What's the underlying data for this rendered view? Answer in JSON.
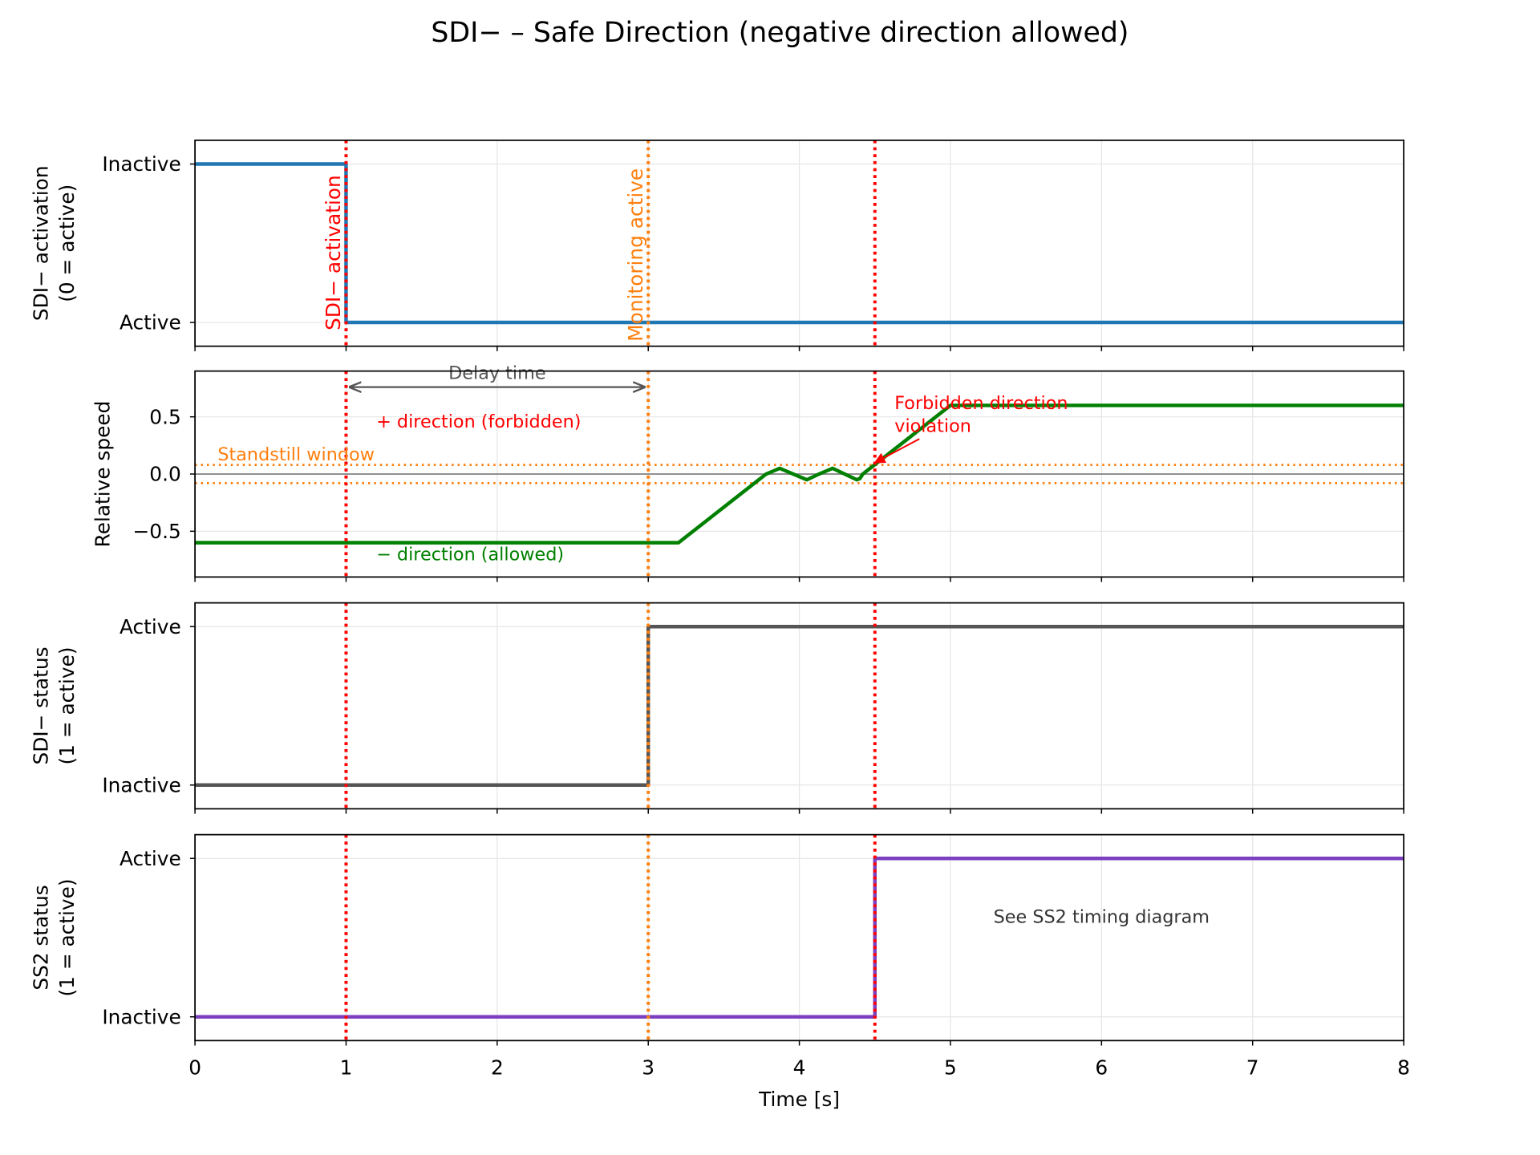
{
  "title": "SDI− – Safe Direction (negative direction allowed)",
  "chart_data": [
    {
      "type": "line",
      "ylabel": [
        "SDI− activation",
        "(0 = active)"
      ],
      "xlim": [
        0,
        8
      ],
      "xticks": [
        0,
        1,
        2,
        3,
        4,
        5,
        6,
        7,
        8
      ],
      "ylim": [
        -0.15,
        1.15
      ],
      "yticks": [
        {
          "value": 0,
          "label": "Active"
        },
        {
          "value": 1,
          "label": "Inactive"
        }
      ],
      "grid": true,
      "series": [
        {
          "color": "#1f77b4",
          "x": [
            0,
            1,
            1,
            8
          ],
          "values": [
            1,
            1,
            0,
            0
          ]
        }
      ],
      "vlines": [
        {
          "x": 1,
          "color": "#ff0000"
        },
        {
          "x": 3,
          "color": "#ff7f0e"
        },
        {
          "x": 4.5,
          "color": "#ff0000"
        }
      ],
      "annotations": [
        {
          "text": "SDI− activation",
          "x": 1,
          "y": -0.05,
          "color": "#ff0000",
          "rotation": 90
        },
        {
          "text": "Monitoring active",
          "x": 3,
          "y": -0.12,
          "color": "#ff7f0e",
          "rotation": 90
        }
      ]
    },
    {
      "type": "line",
      "ylabel": [
        "Relative speed"
      ],
      "xlim": [
        0,
        8
      ],
      "xticks": [
        0,
        1,
        2,
        3,
        4,
        5,
        6,
        7,
        8
      ],
      "ylim": [
        -0.9,
        0.9
      ],
      "yticks": [
        {
          "value": -0.5,
          "label": "−0.5"
        },
        {
          "value": 0,
          "label": "0.0"
        },
        0.5
      ],
      "grid": true,
      "series": [
        {
          "color": "#008000",
          "x": [
            0,
            3.2,
            3.78,
            3.87,
            3.96,
            4.05,
            4.13,
            4.22,
            4.3,
            4.38,
            4.4,
            4.42,
            5,
            8
          ],
          "values": [
            -0.6,
            -0.6,
            0,
            0.05,
            0,
            -0.05,
            0,
            0.05,
            0,
            -0.05,
            -0.04,
            0,
            0.6,
            0.6
          ]
        }
      ],
      "hlines": [
        {
          "y": 0,
          "color": "#808080",
          "style": "solid"
        },
        {
          "y": 0.08,
          "color": "#ff7f0e",
          "style": "dotted"
        },
        {
          "y": -0.08,
          "color": "#ff7f0e",
          "style": "dotted"
        }
      ],
      "vlines": [
        {
          "x": 1,
          "color": "#ff0000"
        },
        {
          "x": 3,
          "color": "#ff7f0e"
        },
        {
          "x": 4.5,
          "color": "#ff0000"
        }
      ],
      "spans": [
        {
          "label": "Delay time",
          "x": [
            1,
            3
          ],
          "y": 0.76,
          "color": "#555555"
        }
      ],
      "annotations": [
        {
          "text": "+ direction (forbidden)",
          "x": 1.2,
          "y": 0.46,
          "color": "#ff0000"
        },
        {
          "text": "Standstill window",
          "x": 0.15,
          "y": 0.17,
          "color": "#ff7f0e"
        },
        {
          "text": "− direction (allowed)",
          "x": 1.2,
          "y": -0.7,
          "color": "#008000"
        },
        {
          "text": [
            "Forbidden direction",
            "violation"
          ],
          "x": 4.63,
          "y": 0.62,
          "color": "#ff0000",
          "xy": [
            4.5,
            0.1
          ]
        }
      ]
    },
    {
      "type": "line",
      "ylabel": [
        "SDI− status",
        "(1 = active)"
      ],
      "xlim": [
        0,
        8
      ],
      "xticks": [
        0,
        1,
        2,
        3,
        4,
        5,
        6,
        7,
        8
      ],
      "ylim": [
        -0.15,
        1.15
      ],
      "yticks": [
        {
          "value": 0,
          "label": "Inactive"
        },
        {
          "value": 1,
          "label": "Active"
        }
      ],
      "grid": true,
      "series": [
        {
          "color": "#555555",
          "x": [
            0,
            3,
            3,
            8
          ],
          "values": [
            0,
            0,
            1,
            1
          ]
        }
      ],
      "vlines": [
        {
          "x": 1,
          "color": "#ff0000"
        },
        {
          "x": 3,
          "color": "#ff7f0e"
        },
        {
          "x": 4.5,
          "color": "#ff0000"
        }
      ]
    },
    {
      "type": "line",
      "ylabel": [
        "SS2 status",
        "(1 = active)"
      ],
      "xlabel": "Time [s]",
      "xlim": [
        0,
        8
      ],
      "xticks": [
        0,
        1,
        2,
        3,
        4,
        5,
        6,
        7,
        8
      ],
      "ylim": [
        -0.15,
        1.15
      ],
      "yticks": [
        {
          "value": 0,
          "label": "Inactive"
        },
        {
          "value": 1,
          "label": "Active"
        }
      ],
      "grid": true,
      "series": [
        {
          "color": "#7b3fbf",
          "x": [
            0,
            4.5,
            4.5,
            8
          ],
          "values": [
            0,
            0,
            1,
            1
          ]
        }
      ],
      "vlines": [
        {
          "x": 1,
          "color": "#ff0000"
        },
        {
          "x": 3,
          "color": "#ff7f0e"
        },
        {
          "x": 4.5,
          "color": "#ff0000"
        }
      ],
      "annotations": [
        {
          "text": "See SS2 timing diagram",
          "x": 6,
          "y": 0.63,
          "color": "#333333",
          "anchor": "middle"
        }
      ]
    }
  ]
}
